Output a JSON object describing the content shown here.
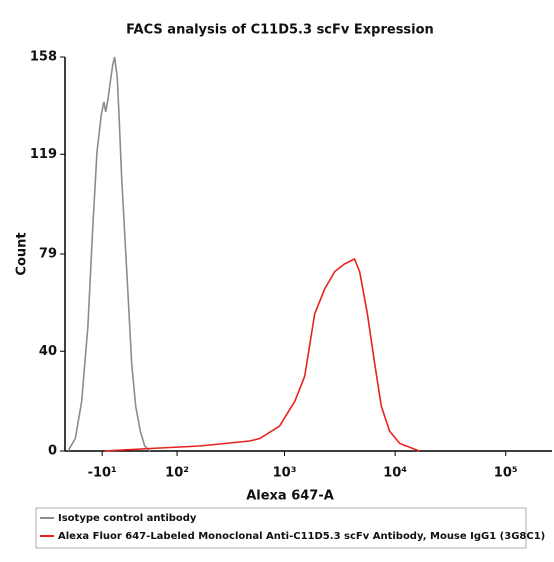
{
  "chart_data": {
    "type": "line",
    "title": "FACS analysis of C11D5.3 scFv Expression",
    "x_label": "Alexa 647-A",
    "y_label": "Count",
    "xscale": "biexponential",
    "xlim": [
      -60,
      262144
    ],
    "xticks": [
      {
        "value": -10,
        "label": "-10¹"
      },
      {
        "value": 100,
        "label": "10²"
      },
      {
        "value": 1000,
        "label": "10³"
      },
      {
        "value": 10000,
        "label": "10⁴"
      },
      {
        "value": 100000,
        "label": "10⁵"
      }
    ],
    "ylim": [
      0,
      158
    ],
    "yticks": [
      0,
      40,
      79,
      119,
      158
    ],
    "legend": "bottom",
    "series": [
      {
        "name": "Isotype control antibody",
        "color": "#8c8c8c",
        "x": [
          -55,
          -44,
          -35,
          -27,
          -21,
          -16,
          -11,
          -8,
          -6,
          -3,
          0,
          2,
          4,
          7,
          9,
          12,
          16,
          20,
          24,
          29,
          35,
          41,
          49
        ],
        "values": [
          0,
          5,
          20,
          50,
          90,
          120,
          135,
          140,
          136,
          142,
          150,
          155,
          158,
          150,
          135,
          110,
          85,
          60,
          35,
          18,
          8,
          2,
          0
        ]
      },
      {
        "name": "Alexa Fluor 647-Labeled Monoclonal Anti-C11D5.3 scFv Antibody, Mouse IgG1 (3G8C1)",
        "color": "#e8231f",
        "x": [
          -7,
          49,
          167,
          484,
          597,
          903,
          1242,
          1523,
          1874,
          2311,
          2851,
          3483,
          4298,
          4779,
          5616,
          6534,
          7506,
          8910,
          11016,
          16578
        ],
        "values": [
          0,
          1,
          2,
          4,
          5,
          10,
          20,
          30,
          55,
          65,
          72,
          75,
          77,
          72,
          55,
          35,
          18,
          8,
          3,
          0
        ]
      }
    ]
  }
}
